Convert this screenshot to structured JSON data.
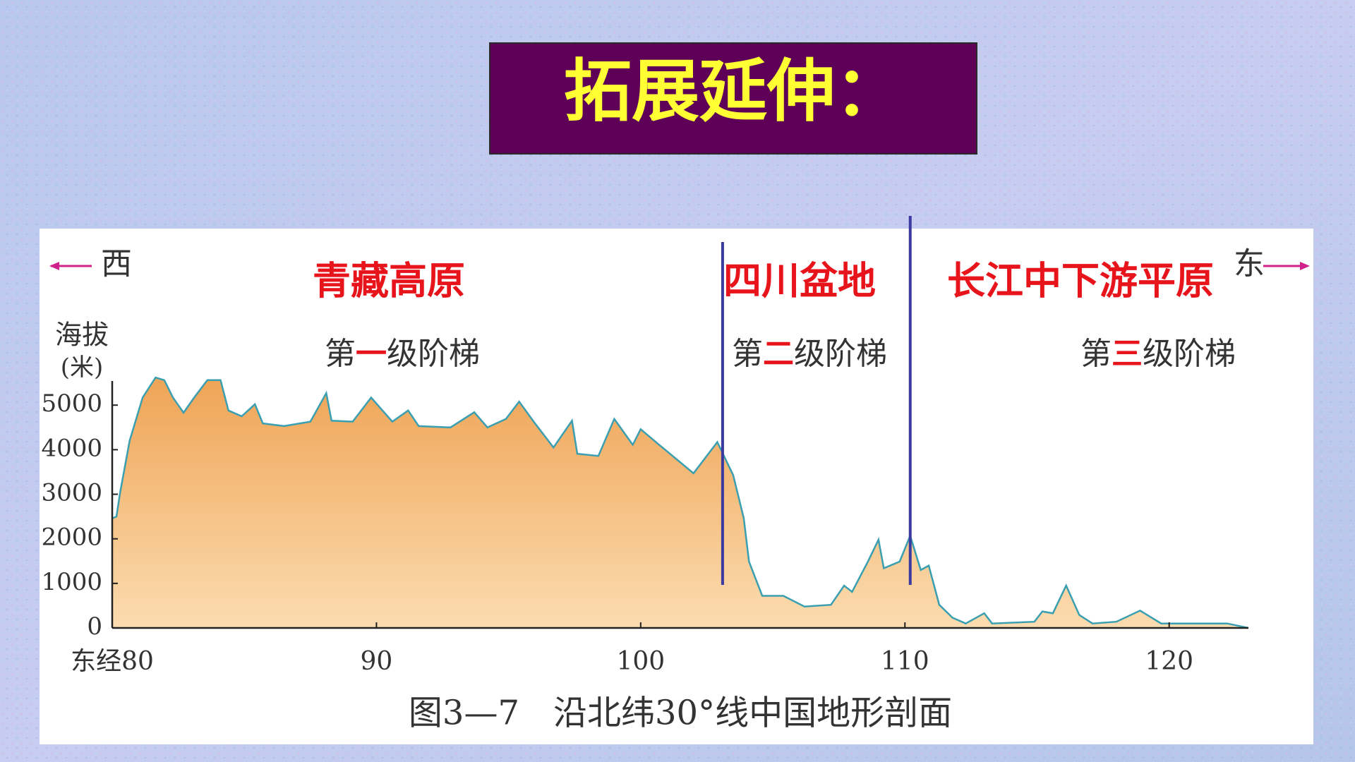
{
  "title": "拓展延伸：",
  "chart_data": {
    "type": "area",
    "caption": "图3—7　沿北纬30°线中国地形剖面",
    "y_label": [
      "海拔",
      "(米)"
    ],
    "directions": {
      "west": "西",
      "east": "东"
    },
    "regions": [
      {
        "name": "青藏高原",
        "step": {
          "prefix": "第",
          "number": "一",
          "suffix": "级阶梯"
        }
      },
      {
        "name": "四川盆地",
        "step": {
          "prefix": "第",
          "number": "二",
          "suffix": "级阶梯"
        }
      },
      {
        "name": "长江中下游平原",
        "step": {
          "prefix": "第",
          "number": "三",
          "suffix": "级阶梯"
        }
      }
    ],
    "dividers": [
      103.1,
      110.2
    ],
    "color": "#f2ae62",
    "line_color": "#3a9fb0",
    "divider_color": "#3a3aa0",
    "x": [
      80.0,
      80.16,
      80.3,
      80.66,
      81.15,
      81.64,
      81.97,
      82.3,
      82.7,
      83.1,
      83.6,
      84.1,
      84.4,
      84.9,
      85.4,
      85.7,
      86.5,
      87.5,
      88.1,
      88.3,
      89.1,
      89.8,
      90.6,
      91.2,
      91.6,
      92.8,
      93.7,
      94.2,
      94.9,
      95.4,
      96.0,
      96.7,
      97.4,
      97.6,
      98.4,
      99.0,
      99.7,
      100.0,
      100.7,
      102.0,
      102.9,
      103.5,
      103.9,
      104.1,
      104.6,
      105.4,
      106.2,
      107.2,
      107.7,
      108.0,
      108.6,
      109.0,
      109.2,
      109.8,
      110.2,
      110.6,
      110.9,
      111.3,
      111.8,
      112.3,
      113.0,
      113.3,
      114.9,
      115.2,
      115.6,
      116.1,
      116.6,
      117.1,
      118.0,
      118.9,
      119.7,
      122.2,
      123.0
    ],
    "values": [
      2460,
      2500,
      3040,
      4200,
      5170,
      5620,
      5560,
      5170,
      4830,
      5170,
      5560,
      5560,
      4880,
      4750,
      5020,
      4590,
      4530,
      4630,
      5270,
      4650,
      4630,
      5170,
      4630,
      4880,
      4530,
      4500,
      4840,
      4500,
      4690,
      5080,
      4590,
      4050,
      4650,
      3910,
      3860,
      4690,
      4110,
      4460,
      4110,
      3470,
      4170,
      3430,
      2460,
      1490,
      720,
      720,
      480,
      520,
      950,
      810,
      1490,
      1980,
      1340,
      1490,
      2070,
      1300,
      1400,
      520,
      230,
      100,
      330,
      100,
      140,
      370,
      330,
      950,
      290,
      100,
      140,
      390,
      100,
      100,
      0
    ],
    "xlim": [
      80,
      123
    ],
    "xticks": [
      {
        "value": 80,
        "label": "东经80"
      },
      90,
      100,
      110,
      120
    ],
    "ylim": [
      0,
      5700
    ],
    "yticks": [
      0,
      1000,
      2000,
      3000,
      4000,
      5000
    ]
  }
}
